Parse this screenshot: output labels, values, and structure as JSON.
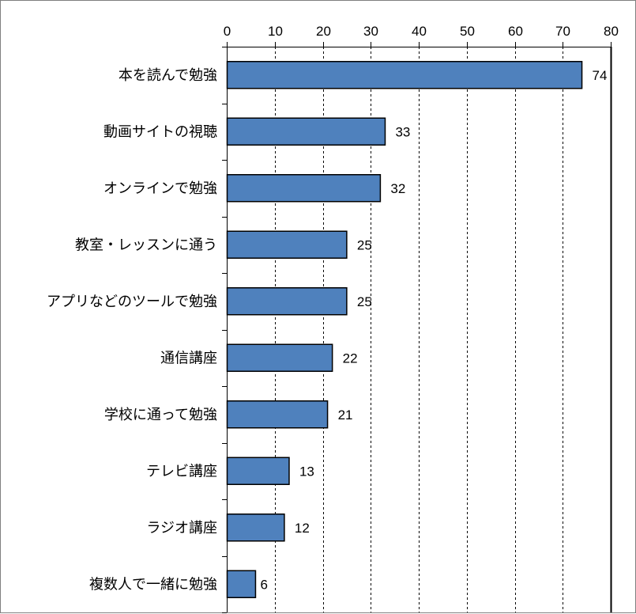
{
  "chart_data": {
    "type": "bar",
    "orientation": "horizontal",
    "categories": [
      "本を読んで勉強",
      "動画サイトの視聴",
      "オンラインで勉強",
      "教室・レッスンに通う",
      "アプリなどのツールで勉強",
      "通信講座",
      "学校に通って勉強",
      "テレビ講座",
      "ラジオ講座",
      "複数人で一緒に勉強"
    ],
    "values": [
      74,
      33,
      32,
      25,
      25,
      22,
      21,
      13,
      12,
      6
    ],
    "value_labels": [
      "74",
      "33",
      "32",
      "25",
      "25",
      "22",
      "21",
      "13",
      "12",
      "6"
    ],
    "xlim": [
      0,
      80
    ],
    "xticks": [
      0,
      10,
      20,
      30,
      40,
      50,
      60,
      70,
      80
    ],
    "xtick_labels": [
      "0",
      "10",
      "20",
      "30",
      "40",
      "50",
      "60",
      "70",
      "80"
    ],
    "x_axis_position": "top",
    "grid": "vertical dashed",
    "legend": "none",
    "bar_color": "#4f81bd",
    "bar_edge_color": "#000000"
  }
}
